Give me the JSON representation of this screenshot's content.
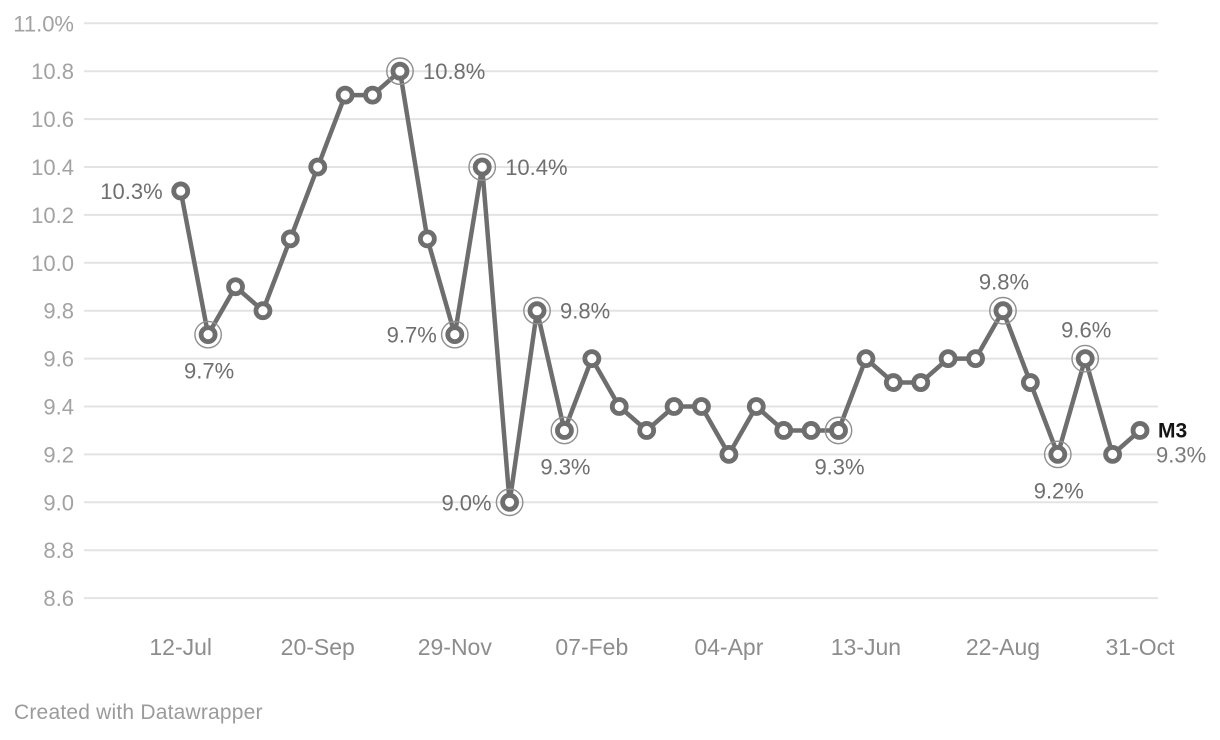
{
  "chart_data": {
    "type": "line",
    "series": [
      {
        "name": "M3",
        "values": [
          10.3,
          9.7,
          9.9,
          9.8,
          10.1,
          10.4,
          10.7,
          10.7,
          10.8,
          10.1,
          9.7,
          10.4,
          9.0,
          9.8,
          9.3,
          9.6,
          9.4,
          9.3,
          9.4,
          9.4,
          9.2,
          9.4,
          9.3,
          9.3,
          9.3,
          9.6,
          9.5,
          9.5,
          9.6,
          9.6,
          9.8,
          9.5,
          9.2,
          9.6,
          9.2,
          9.3
        ]
      }
    ],
    "x_tick_labels": [
      "12-Jul",
      "20-Sep",
      "29-Nov",
      "07-Feb",
      "04-Apr",
      "13-Jun",
      "22-Aug",
      "31-Oct"
    ],
    "x_tick_indices": [
      0,
      5,
      10,
      15,
      20,
      25,
      30,
      35
    ],
    "y_tick_labels": [
      "11.0%",
      "10.8",
      "10.6",
      "10.4",
      "10.2",
      "10.0",
      "9.8",
      "9.6",
      "9.4",
      "9.2",
      "9.0",
      "8.8",
      "8.6"
    ],
    "y_tick_values": [
      11.0,
      10.8,
      10.6,
      10.4,
      10.2,
      10.0,
      9.8,
      9.6,
      9.4,
      9.2,
      9.0,
      8.8,
      8.6
    ],
    "ylim": [
      8.6,
      11.0
    ],
    "grid": true,
    "title": "",
    "xlabel": "",
    "ylabel": "",
    "legend_position": "end-of-line",
    "highlighted_indices": [
      1,
      8,
      10,
      11,
      12,
      13,
      14,
      24,
      30,
      32,
      33
    ],
    "annotations": [
      {
        "index": 0,
        "text": "10.3%",
        "placement": "left"
      },
      {
        "index": 1,
        "text": "9.7%",
        "placement": "below"
      },
      {
        "index": 8,
        "text": "10.8%",
        "placement": "right"
      },
      {
        "index": 10,
        "text": "9.7%",
        "placement": "left"
      },
      {
        "index": 11,
        "text": "10.4%",
        "placement": "right"
      },
      {
        "index": 12,
        "text": "9.0%",
        "placement": "left"
      },
      {
        "index": 13,
        "text": "9.8%",
        "placement": "right"
      },
      {
        "index": 14,
        "text": "9.3%",
        "placement": "below"
      },
      {
        "index": 24,
        "text": "9.3%",
        "placement": "below"
      },
      {
        "index": 30,
        "text": "9.8%",
        "placement": "above"
      },
      {
        "index": 32,
        "text": "9.2%",
        "placement": "below"
      },
      {
        "index": 33,
        "text": "9.6%",
        "placement": "above"
      }
    ],
    "end_labels": {
      "series": "M3",
      "value": "9.3%"
    },
    "colors": {
      "line": "#6e6e6e",
      "marker_fill": "#ffffff",
      "highlight_ring": "#8f8f8f",
      "gridline": "#e3e3e3",
      "value_label": "#6f6f6f",
      "y_axis_label": "#a2a2a2",
      "x_axis_label": "#8d8d8d",
      "series_end_label": "#141414",
      "end_value_label": "#7a7a7a",
      "background": "#ffffff"
    }
  },
  "footer": {
    "text": "Created with Datawrapper"
  }
}
